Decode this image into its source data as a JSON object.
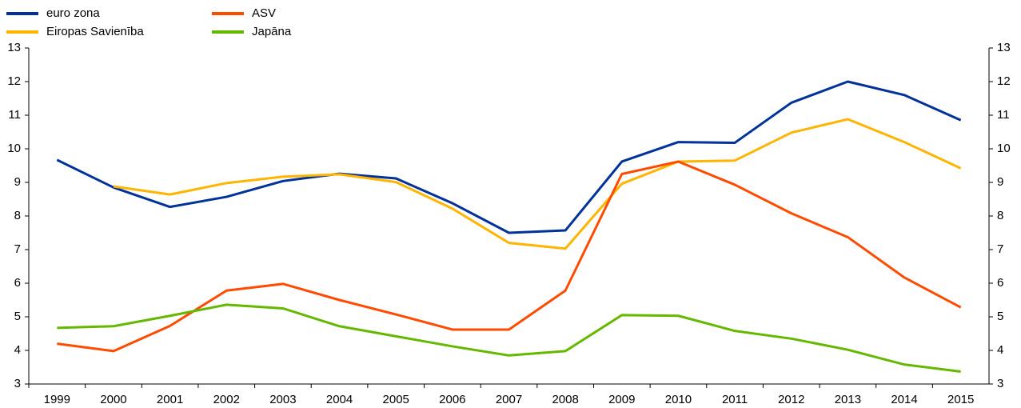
{
  "chart_data": {
    "type": "line",
    "categories": [
      "1999",
      "2000",
      "2001",
      "2002",
      "2003",
      "2004",
      "2005",
      "2006",
      "2007",
      "2008",
      "2009",
      "2010",
      "2011",
      "2012",
      "2013",
      "2014",
      "2015"
    ],
    "series": [
      {
        "name": "euro zona",
        "color": "#003299",
        "values": [
          9.67,
          8.85,
          8.27,
          8.57,
          9.04,
          9.26,
          9.12,
          8.38,
          7.5,
          7.57,
          9.62,
          10.2,
          10.18,
          11.37,
          12.0,
          11.6,
          10.85
        ]
      },
      {
        "name": "Eiropas Savienība",
        "color": "#ffb400",
        "values": [
          null,
          8.88,
          8.64,
          8.98,
          9.17,
          9.24,
          9.01,
          8.22,
          7.2,
          7.03,
          8.96,
          9.62,
          9.65,
          10.48,
          10.88,
          10.2,
          9.42
        ]
      },
      {
        "name": "ASV",
        "color": "#ff4b00",
        "values": [
          4.2,
          3.98,
          4.73,
          5.78,
          5.98,
          5.5,
          5.07,
          4.62,
          4.62,
          5.78,
          9.25,
          9.62,
          8.93,
          8.08,
          7.37,
          6.17,
          5.28
        ]
      },
      {
        "name": "Japāna",
        "color": "#65b800",
        "values": [
          4.67,
          4.72,
          5.03,
          5.36,
          5.25,
          4.72,
          4.42,
          4.12,
          3.85,
          3.98,
          5.05,
          5.03,
          4.58,
          4.35,
          4.02,
          3.58,
          3.37
        ]
      }
    ],
    "ylim": [
      3,
      13
    ],
    "yticks": [
      3,
      4,
      5,
      6,
      7,
      8,
      9,
      10,
      11,
      12,
      13
    ],
    "y2lim": [
      3,
      13
    ],
    "y2ticks": [
      3,
      4,
      5,
      6,
      7,
      8,
      9,
      10,
      11,
      12,
      13
    ],
    "grid": false
  }
}
